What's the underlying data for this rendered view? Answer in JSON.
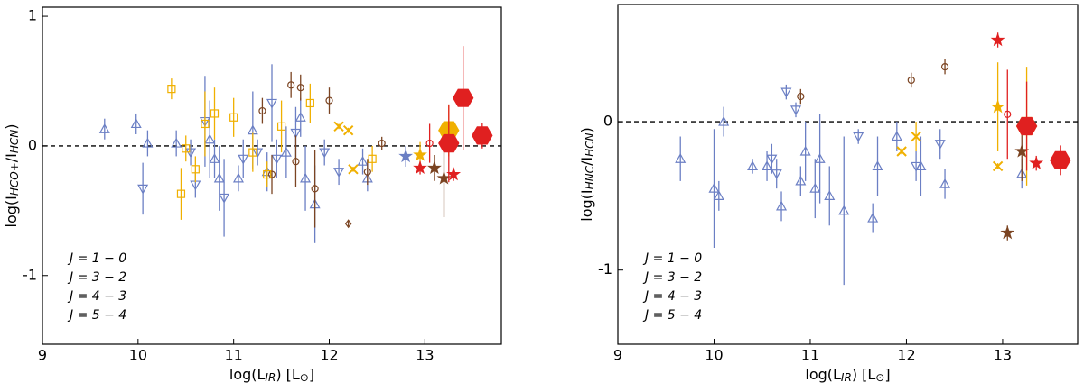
{
  "chart_data": [
    {
      "type": "scatter",
      "xlabel": [
        "log(L",
        "IR",
        ") [L",
        "⊙",
        "]"
      ],
      "ylabel": [
        "log(I",
        "HCO+",
        "/I",
        "HCN",
        ")"
      ],
      "xlim": [
        9,
        13.8
      ],
      "ylim": [
        -1.53,
        1.07
      ],
      "xticks": [
        9,
        10,
        11,
        12,
        13
      ],
      "yticks": [
        -1,
        0,
        1
      ],
      "reference_line": 0,
      "series": [
        {
          "name": "J = 1 − 0",
          "color": "#6b7fc4",
          "x": [
            9.65,
            9.98,
            10.1,
            10.05,
            10.4,
            10.55,
            10.6,
            10.7,
            10.75,
            10.8,
            10.85,
            10.9,
            11.05,
            11.1,
            11.2,
            11.25,
            11.35,
            11.4,
            11.45,
            11.55,
            11.65,
            11.7,
            11.75,
            11.85,
            11.95,
            12.1,
            12.35,
            12.4,
            12.8
          ],
          "values": [
            0.13,
            0.17,
            0.02,
            -0.33,
            0.02,
            -0.05,
            -0.3,
            0.19,
            0.05,
            -0.1,
            -0.25,
            -0.4,
            -0.25,
            -0.1,
            0.12,
            -0.05,
            -0.2,
            0.33,
            -0.1,
            -0.05,
            0.1,
            0.22,
            -0.25,
            -0.45,
            -0.05,
            -0.2,
            -0.12,
            -0.25,
            -0.08
          ],
          "errors": [
            0.08,
            0.08,
            0.1,
            0.2,
            0.1,
            0.1,
            0.1,
            0.35,
            0.3,
            0.15,
            0.25,
            0.3,
            0.1,
            0.15,
            0.3,
            0.1,
            0.15,
            0.3,
            0.15,
            0.2,
            0.2,
            0.15,
            0.25,
            0.3,
            0.1,
            0.1,
            0.1,
            0.1,
            0.08
          ],
          "markers": [
            "tri",
            "tri",
            "tri",
            "itri",
            "tri",
            "itri",
            "itri",
            "itri",
            "tri",
            "tri",
            "tri",
            "itri",
            "tri",
            "itri",
            "tri",
            "itri",
            "tri",
            "itri",
            "itri",
            "tri",
            "itri",
            "tri",
            "tri",
            "tri",
            "itri",
            "itri",
            "tri",
            "tri",
            "star"
          ]
        },
        {
          "name": "J = 3 − 2",
          "color": "#7b4422",
          "x": [
            11.3,
            11.4,
            11.6,
            11.65,
            11.7,
            11.85,
            12.0,
            12.2,
            12.4,
            12.55,
            13.1,
            13.2
          ],
          "values": [
            0.27,
            -0.22,
            0.47,
            -0.12,
            0.45,
            -0.33,
            0.35,
            -0.6,
            -0.2,
            0.02,
            -0.17,
            -0.25
          ],
          "errors": [
            0.1,
            0.15,
            0.1,
            0.2,
            0.1,
            0.3,
            0.1,
            0.02,
            0.1,
            0.05,
            0.1,
            0.3
          ],
          "markers": [
            "circ",
            "circ",
            "circ",
            "circ",
            "circ",
            "circ",
            "circ",
            "diamond",
            "circ",
            "circ",
            "star",
            "star"
          ]
        },
        {
          "name": "J = 4 − 3",
          "color": "#f0b000",
          "x": [
            10.35,
            10.5,
            10.45,
            10.6,
            10.7,
            10.8,
            11.0,
            11.2,
            11.35,
            11.5,
            11.8,
            12.1,
            12.2,
            12.25,
            12.45,
            12.95,
            13.25
          ],
          "values": [
            0.44,
            -0.02,
            -0.37,
            -0.18,
            0.17,
            0.25,
            0.22,
            -0.05,
            -0.22,
            0.15,
            0.33,
            0.15,
            0.12,
            -0.18,
            -0.1,
            -0.07,
            0.12
          ],
          "errors": [
            0.08,
            0.1,
            0.2,
            0.1,
            0.25,
            0.2,
            0.15,
            0.15,
            0.1,
            0.2,
            0.15,
            0.02,
            0.02,
            0.02,
            0.1,
            0.1,
            0.2
          ],
          "markers": [
            "sq",
            "sq",
            "sq",
            "sq",
            "sq",
            "sq",
            "sq",
            "sq",
            "sq",
            "sq",
            "sq",
            "x",
            "x",
            "x",
            "sq",
            "star",
            "hex"
          ]
        },
        {
          "name": "J = 5 − 4",
          "color": "#e02020",
          "x": [
            12.95,
            13.05,
            13.25,
            13.4,
            13.6,
            13.3
          ],
          "values": [
            -0.17,
            0.02,
            0.02,
            0.37,
            0.08,
            -0.22
          ],
          "errors": [
            0.05,
            0.15,
            0.3,
            0.4,
            0.1,
            0.05
          ],
          "markers": [
            "star",
            "circ",
            "hex",
            "hex",
            "hex",
            "star"
          ]
        }
      ]
    },
    {
      "type": "scatter",
      "xlabel": [
        "log(L",
        "IR",
        ") [L",
        "⊙",
        "]"
      ],
      "ylabel": [
        "log(I",
        "HNC",
        "/I",
        "HCN",
        ")"
      ],
      "xlim": [
        9,
        13.78
      ],
      "ylim": [
        -1.5,
        0.79
      ],
      "xticks": [
        9,
        10,
        11,
        12,
        13
      ],
      "yticks": [
        -1,
        0
      ],
      "reference_line": 0,
      "series": [
        {
          "name": "J = 1 − 0",
          "color": "#6b7fc4",
          "x": [
            9.65,
            10.0,
            10.05,
            10.1,
            10.4,
            10.55,
            10.6,
            10.65,
            10.7,
            10.75,
            10.85,
            10.9,
            10.95,
            11.05,
            11.1,
            11.2,
            11.35,
            11.5,
            11.65,
            11.7,
            11.9,
            12.1,
            12.15,
            12.35,
            12.4,
            13.2
          ],
          "values": [
            -0.25,
            -0.45,
            -0.5,
            0.0,
            -0.3,
            -0.3,
            -0.25,
            -0.35,
            -0.57,
            0.2,
            0.08,
            -0.4,
            -0.2,
            -0.45,
            -0.25,
            -0.5,
            -0.6,
            -0.1,
            -0.65,
            -0.3,
            -0.1,
            -0.3,
            -0.3,
            -0.15,
            -0.42,
            -0.35
          ],
          "errors": [
            0.15,
            0.4,
            0.1,
            0.1,
            0.05,
            0.1,
            0.1,
            0.1,
            0.1,
            0.05,
            0.05,
            0.1,
            0.2,
            0.2,
            0.3,
            0.2,
            0.5,
            0.05,
            0.1,
            0.2,
            0.1,
            0.1,
            0.2,
            0.1,
            0.1,
            0.1
          ],
          "markers": [
            "tri",
            "tri",
            "tri",
            "tri",
            "tri",
            "tri",
            "itri",
            "itri",
            "tri",
            "itri",
            "itri",
            "tri",
            "tri",
            "tri",
            "tri",
            "tri",
            "tri",
            "itri",
            "tri",
            "tri",
            "tri",
            "itri",
            "tri",
            "itri",
            "tri",
            "tri"
          ]
        },
        {
          "name": "J = 3 − 2",
          "color": "#7b4422",
          "x": [
            10.9,
            12.05,
            12.4,
            13.05,
            13.2
          ],
          "values": [
            0.17,
            0.28,
            0.37,
            -0.75,
            -0.2
          ],
          "errors": [
            0.05,
            0.05,
            0.05,
            0.05,
            0.2
          ],
          "markers": [
            "circ",
            "circ",
            "circ",
            "star",
            "star"
          ]
        },
        {
          "name": "J = 4 − 3",
          "color": "#f0b000",
          "x": [
            11.95,
            12.1,
            12.95,
            12.95,
            13.25
          ],
          "values": [
            -0.2,
            -0.1,
            0.1,
            -0.3,
            -0.03
          ],
          "errors": [
            0.02,
            0.1,
            0.3,
            0.02,
            0.4
          ],
          "markers": [
            "x",
            "x",
            "star",
            "x",
            "hex"
          ]
        },
        {
          "name": "J = 5 − 4",
          "color": "#e02020",
          "x": [
            12.95,
            13.05,
            13.25,
            13.35,
            13.6
          ],
          "values": [
            0.55,
            0.05,
            -0.03,
            -0.28,
            -0.26
          ],
          "errors": [
            0.05,
            0.3,
            0.3,
            0.05,
            0.1
          ],
          "markers": [
            "star",
            "circ",
            "hex",
            "star",
            "hex"
          ]
        }
      ]
    }
  ]
}
